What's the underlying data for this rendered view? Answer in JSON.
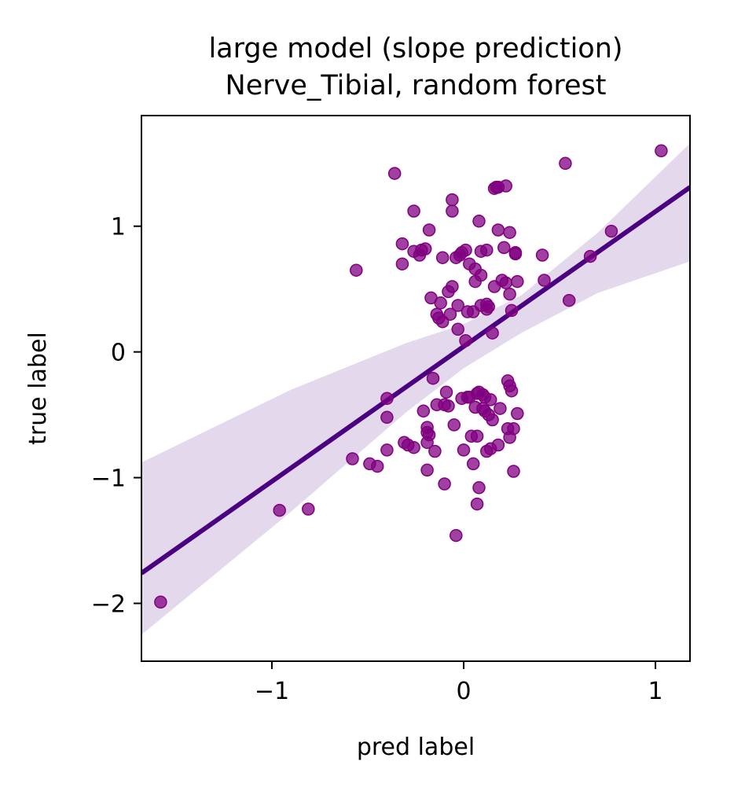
{
  "chart_data": {
    "type": "scatter",
    "title": "large model (slope prediction)",
    "subtitle": "Nerve_Tibial, random forest",
    "xlabel": "pred label",
    "ylabel": "true label",
    "xlim": [
      -1.68,
      1.18
    ],
    "ylim": [
      -2.46,
      1.88
    ],
    "xticks": [
      {
        "value": -1,
        "label": "−1"
      },
      {
        "value": 0,
        "label": "0"
      },
      {
        "value": 1,
        "label": "1"
      }
    ],
    "yticks": [
      {
        "value": -2,
        "label": "−2"
      },
      {
        "value": -1,
        "label": "−1"
      },
      {
        "value": 0,
        "label": "0"
      },
      {
        "value": 1,
        "label": "1"
      }
    ],
    "grid": false,
    "colors": {
      "points": "#800080",
      "regression_line": "#4b0082",
      "confidence_band": "#e3d8ec"
    },
    "regression": {
      "line": [
        [
          -1.68,
          -1.76
        ],
        [
          1.18,
          1.31
        ]
      ],
      "ci_upper": [
        [
          -1.68,
          -0.88
        ],
        [
          -0.9,
          -0.3
        ],
        [
          -0.3,
          0.07
        ],
        [
          0.0,
          0.22
        ],
        [
          0.3,
          0.45
        ],
        [
          0.7,
          0.95
        ],
        [
          1.18,
          1.66
        ]
      ],
      "ci_lower": [
        [
          -1.68,
          -2.25
        ],
        [
          -0.9,
          -1.27
        ],
        [
          -0.3,
          -0.48
        ],
        [
          0.0,
          -0.13
        ],
        [
          0.3,
          0.15
        ],
        [
          0.7,
          0.47
        ],
        [
          1.18,
          0.72
        ]
      ]
    },
    "points": [
      [
        -1.58,
        -1.99
      ],
      [
        -0.96,
        -1.26
      ],
      [
        -0.81,
        -1.25
      ],
      [
        -0.56,
        0.65
      ],
      [
        -0.58,
        -0.85
      ],
      [
        -0.49,
        -0.89
      ],
      [
        -0.45,
        -0.91
      ],
      [
        -0.4,
        -0.37
      ],
      [
        -0.4,
        -0.52
      ],
      [
        -0.4,
        -0.78
      ],
      [
        -0.36,
        1.42
      ],
      [
        -0.32,
        0.86
      ],
      [
        -0.32,
        0.7
      ],
      [
        -0.31,
        -0.72
      ],
      [
        -0.29,
        -0.74
      ],
      [
        -0.26,
        1.12
      ],
      [
        -0.26,
        0.8
      ],
      [
        -0.26,
        -0.76
      ],
      [
        -0.23,
        0.77
      ],
      [
        -0.22,
        0.81
      ],
      [
        -0.21,
        -0.47
      ],
      [
        -0.2,
        0.82
      ],
      [
        -0.19,
        -0.72
      ],
      [
        -0.19,
        -0.64
      ],
      [
        -0.19,
        -0.94
      ],
      [
        -0.19,
        -0.6
      ],
      [
        -0.18,
        0.97
      ],
      [
        -0.18,
        -0.66
      ],
      [
        -0.17,
        0.43
      ],
      [
        -0.16,
        -0.21
      ],
      [
        -0.15,
        -0.79
      ],
      [
        -0.14,
        0.3
      ],
      [
        -0.14,
        -0.42
      ],
      [
        -0.13,
        0.27
      ],
      [
        -0.12,
        0.39
      ],
      [
        -0.11,
        0.24
      ],
      [
        -0.11,
        0.75
      ],
      [
        -0.1,
        -0.42
      ],
      [
        -0.1,
        -1.05
      ],
      [
        -0.09,
        -0.32
      ],
      [
        -0.08,
        -0.43
      ],
      [
        -0.08,
        0.48
      ],
      [
        -0.07,
        0.3
      ],
      [
        -0.06,
        1.21
      ],
      [
        -0.06,
        1.12
      ],
      [
        -0.06,
        0.52
      ],
      [
        -0.05,
        -0.58
      ],
      [
        -0.04,
        0.75
      ],
      [
        -0.04,
        -1.46
      ],
      [
        -0.03,
        0.37
      ],
      [
        -0.03,
        0.18
      ],
      [
        -0.02,
        0.77
      ],
      [
        -0.01,
        0.79
      ],
      [
        -0.01,
        -0.37
      ],
      [
        0.0,
        -0.78
      ],
      [
        0.01,
        0.81
      ],
      [
        0.01,
        0.09
      ],
      [
        0.02,
        0.32
      ],
      [
        0.02,
        -0.36
      ],
      [
        0.03,
        0.7
      ],
      [
        0.03,
        -0.36
      ],
      [
        0.04,
        -0.67
      ],
      [
        0.05,
        0.32
      ],
      [
        0.05,
        -0.89
      ],
      [
        0.06,
        -0.44
      ],
      [
        0.06,
        0.66
      ],
      [
        0.06,
        0.56
      ],
      [
        0.07,
        -0.67
      ],
      [
        0.07,
        -0.33
      ],
      [
        0.07,
        -1.21
      ],
      [
        0.08,
        1.04
      ],
      [
        0.08,
        -0.32
      ],
      [
        0.08,
        -1.08
      ],
      [
        0.09,
        0.61
      ],
      [
        0.09,
        0.37
      ],
      [
        0.09,
        0.8
      ],
      [
        0.1,
        -0.34
      ],
      [
        0.1,
        -0.45
      ],
      [
        0.11,
        -0.36
      ],
      [
        0.11,
        -0.47
      ],
      [
        0.12,
        0.34
      ],
      [
        0.12,
        -0.79
      ],
      [
        0.12,
        0.81
      ],
      [
        0.12,
        0.38
      ],
      [
        0.13,
        -0.5
      ],
      [
        0.13,
        0.36
      ],
      [
        0.14,
        -0.77
      ],
      [
        0.14,
        -0.38
      ],
      [
        0.15,
        0.15
      ],
      [
        0.15,
        -0.54
      ],
      [
        0.16,
        0.52
      ],
      [
        0.16,
        1.3
      ],
      [
        0.17,
        1.31
      ],
      [
        0.18,
        0.97
      ],
      [
        0.18,
        -0.74
      ],
      [
        0.18,
        1.31
      ],
      [
        0.19,
        -0.45
      ],
      [
        0.2,
        0.57
      ],
      [
        0.21,
        0.83
      ],
      [
        0.22,
        0.55
      ],
      [
        0.22,
        1.32
      ],
      [
        0.23,
        -0.23
      ],
      [
        0.23,
        -0.61
      ],
      [
        0.24,
        -0.27
      ],
      [
        0.24,
        0.95
      ],
      [
        0.24,
        0.46
      ],
      [
        0.24,
        -0.68
      ],
      [
        0.25,
        0.33
      ],
      [
        0.25,
        -0.31
      ],
      [
        0.26,
        -0.61
      ],
      [
        0.26,
        -0.95
      ],
      [
        0.27,
        0.79
      ],
      [
        0.27,
        0.78
      ],
      [
        0.28,
        -0.49
      ],
      [
        0.28,
        0.56
      ],
      [
        0.41,
        0.77
      ],
      [
        0.42,
        0.57
      ],
      [
        0.53,
        1.5
      ],
      [
        0.55,
        0.41
      ],
      [
        0.66,
        0.76
      ],
      [
        0.77,
        0.96
      ],
      [
        1.03,
        1.6
      ]
    ]
  }
}
